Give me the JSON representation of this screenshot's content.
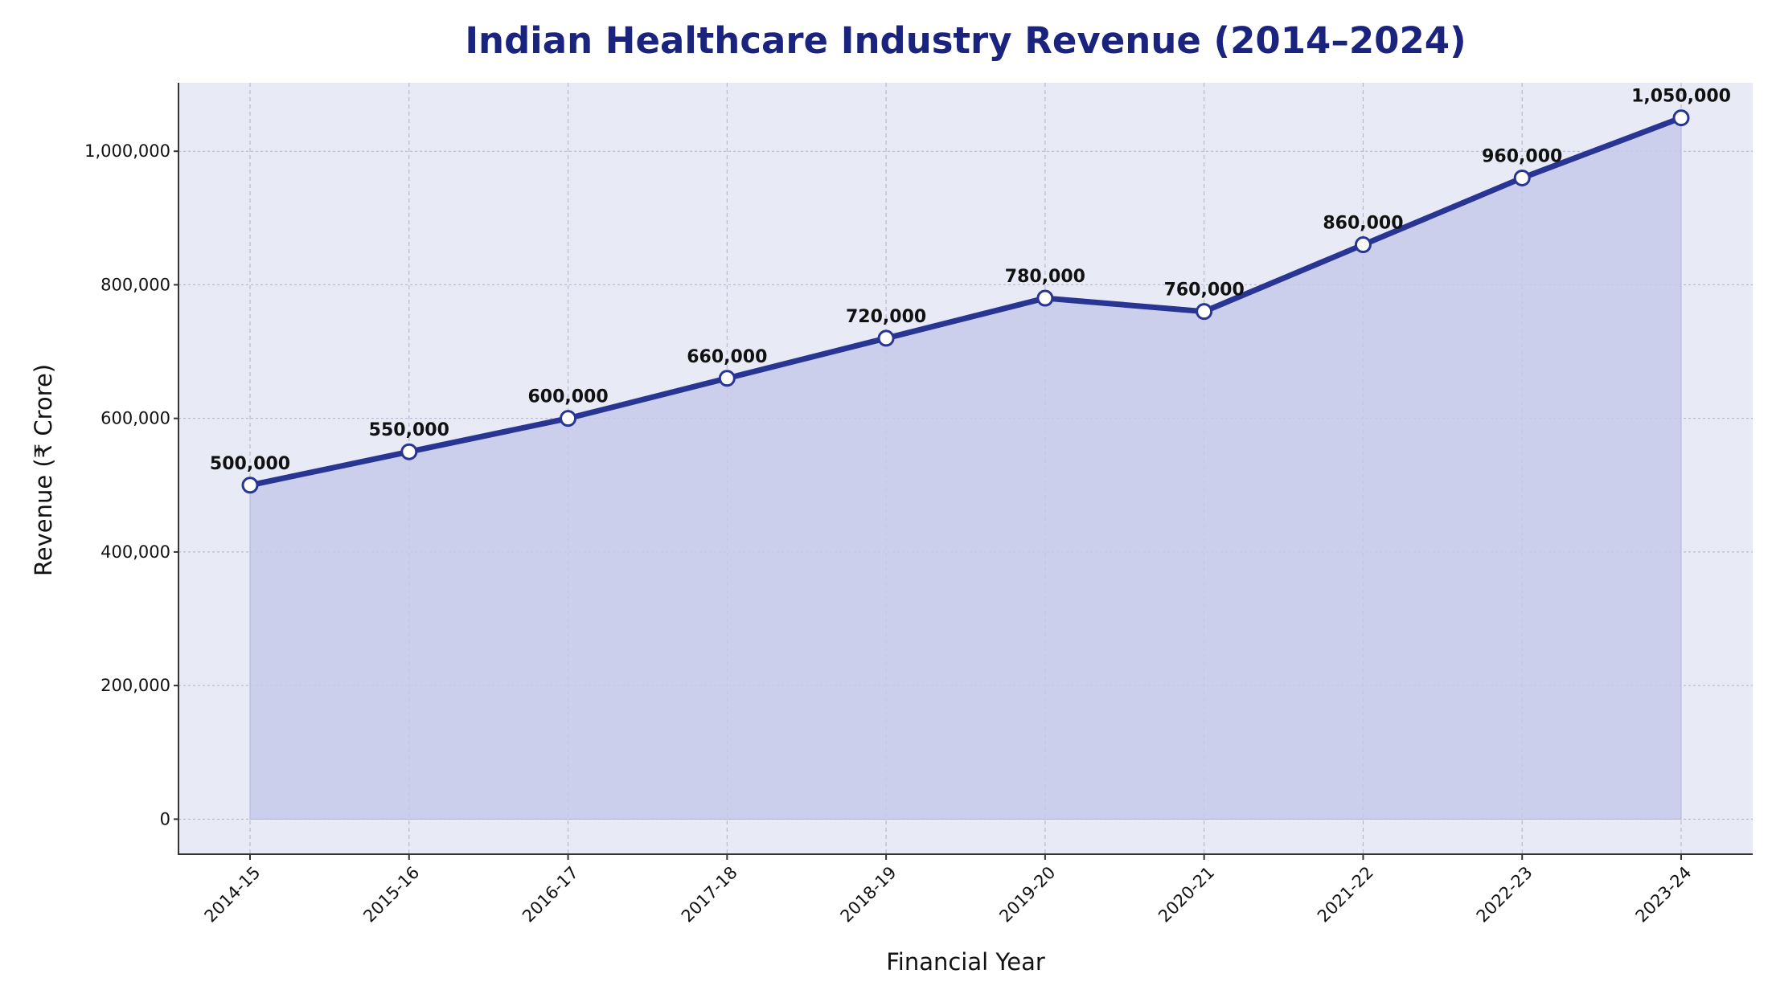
{
  "chart_data": {
    "type": "area",
    "title": "Indian Healthcare Industry Revenue (2014–2024)",
    "xlabel": "Financial Year",
    "ylabel": "Revenue (₹ Crore)",
    "categories": [
      "2014-15",
      "2015-16",
      "2016-17",
      "2017-18",
      "2018-19",
      "2019-20",
      "2020-21",
      "2021-22",
      "2022-23",
      "2023-24"
    ],
    "values": [
      500000,
      550000,
      600000,
      660000,
      720000,
      780000,
      760000,
      860000,
      960000,
      1050000
    ],
    "data_labels": [
      "500,000",
      "550,000",
      "600,000",
      "660,000",
      "720,000",
      "780,000",
      "760,000",
      "860,000",
      "960,000",
      "1,050,000"
    ],
    "y_ticks": [
      0,
      200000,
      400000,
      600000,
      800000,
      1000000
    ],
    "y_tick_labels": [
      "0",
      "200,000",
      "400,000",
      "600,000",
      "800,000",
      "1,000,000"
    ],
    "ylim": [
      -52500,
      1102500
    ],
    "grid": true,
    "legend": "none",
    "colors": {
      "title": "#1a237e",
      "line": "#283593",
      "fill": "#c5cae9",
      "plot_background": "#e8eaf6",
      "marker_face": "#ffffff"
    }
  }
}
